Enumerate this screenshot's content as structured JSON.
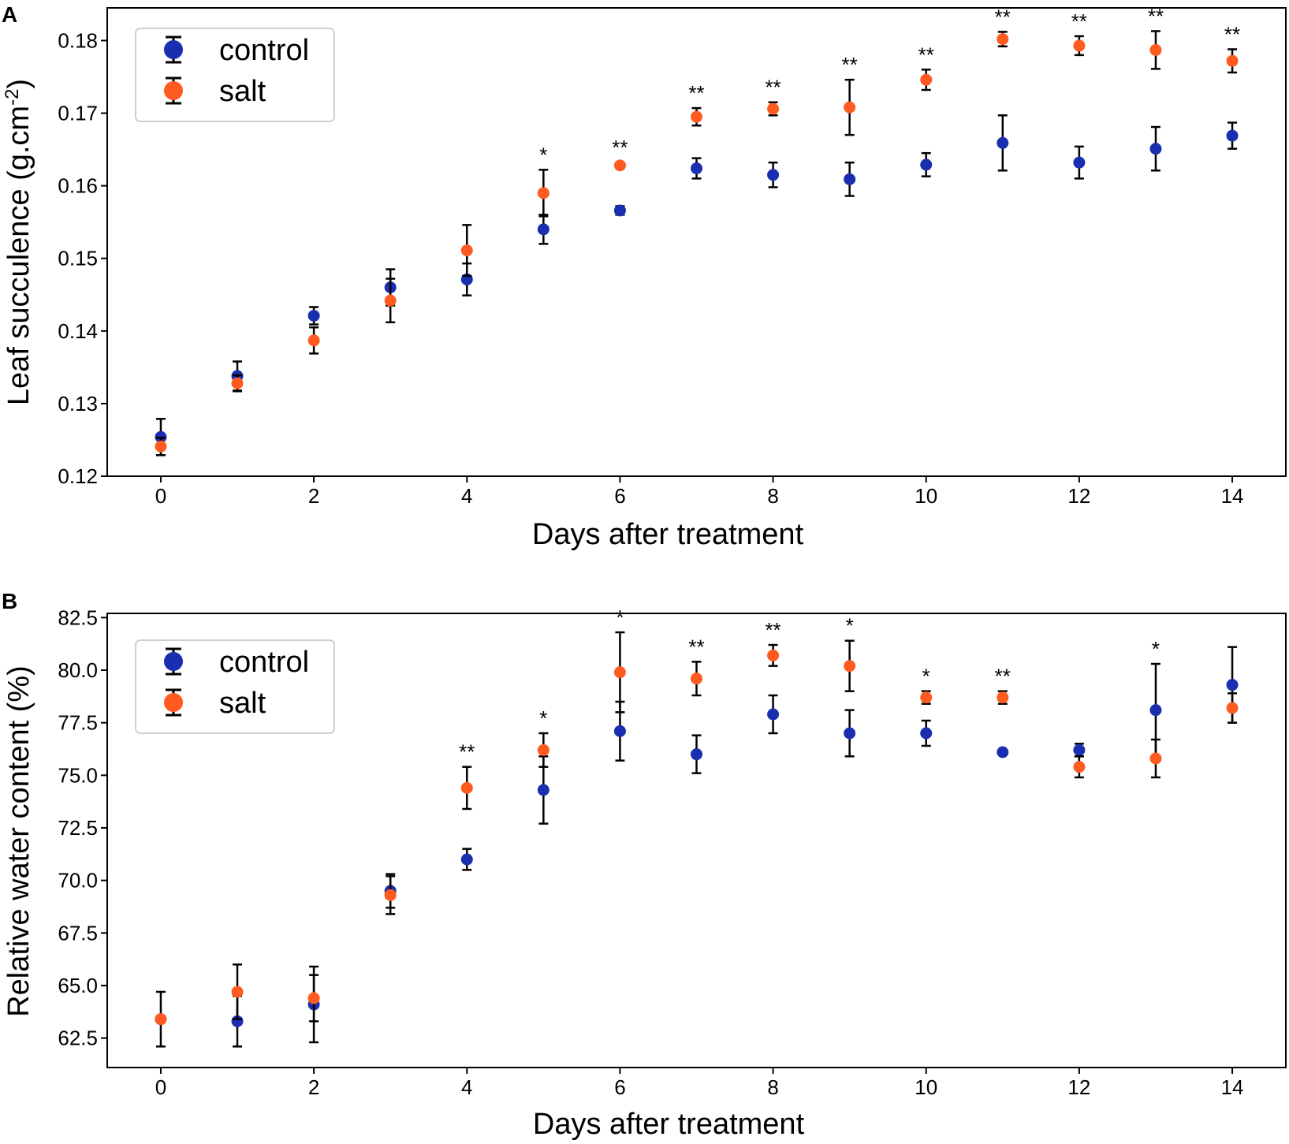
{
  "colors": {
    "control": "#1a2fb0",
    "salt": "#ff5a1f",
    "errorbar": "#000000"
  },
  "chart_data": [
    {
      "panel": "A",
      "type": "scatter",
      "title": "",
      "xlabel": "Days after treatment",
      "ylabel": "Leaf succulence (g.cm-2)",
      "ylabel_main": "Leaf succulence (g.cm",
      "ylabel_sup": "-2",
      "ylabel_tail": ")",
      "xlim": [
        -0.7,
        14.7
      ],
      "ylim": [
        0.12,
        0.1845
      ],
      "xticks": [
        0,
        2,
        4,
        6,
        8,
        10,
        12,
        14
      ],
      "xtick_labels": [
        "0",
        "2",
        "4",
        "6",
        "8",
        "10",
        "12",
        "14"
      ],
      "yticks": [
        0.12,
        0.13,
        0.14,
        0.15,
        0.16,
        0.17,
        0.18
      ],
      "ytick_labels": [
        "0.12",
        "0.13",
        "0.14",
        "0.15",
        "0.16",
        "0.17",
        "0.18"
      ],
      "legend": {
        "position": "top-left",
        "entries": [
          "control",
          "salt"
        ]
      },
      "x": [
        0,
        1,
        2,
        3,
        4,
        5,
        6,
        7,
        8,
        9,
        10,
        11,
        12,
        13,
        14
      ],
      "series": [
        {
          "name": "control",
          "values": [
            0.1254,
            0.1338,
            0.1421,
            0.146,
            0.1471,
            0.154,
            0.1566,
            0.1624,
            0.1615,
            0.1609,
            0.1629,
            0.1659,
            0.1632,
            0.1651,
            0.1669
          ],
          "errors": [
            0.0025,
            0.002,
            0.0012,
            0.0025,
            0.0022,
            0.002,
            0.0006,
            0.0014,
            0.0017,
            0.0023,
            0.0016,
            0.0038,
            0.0022,
            0.003,
            0.0018
          ]
        },
        {
          "name": "salt",
          "values": [
            0.1241,
            0.1328,
            0.1387,
            0.1442,
            0.1511,
            0.159,
            0.1628,
            0.1695,
            0.1706,
            0.1708,
            0.1746,
            0.1802,
            0.1793,
            0.1787,
            0.1772
          ],
          "errors": [
            0.0012,
            0.0011,
            0.0018,
            0.003,
            0.0035,
            0.0032,
            0.0004,
            0.0012,
            0.0009,
            0.0038,
            0.0014,
            0.001,
            0.0013,
            0.0026,
            0.0016
          ]
        }
      ],
      "significance": [
        "",
        "",
        "",
        "",
        "",
        "*",
        "**",
        "**",
        "**",
        "**",
        "**",
        "**",
        "**",
        "**",
        "**"
      ]
    },
    {
      "panel": "B",
      "type": "scatter",
      "title": "",
      "xlabel": "Days after treatment",
      "ylabel": "Relative water content (%)",
      "ylabel_main": "Relative water content (%)",
      "ylabel_sup": "",
      "ylabel_tail": "",
      "xlim": [
        -0.7,
        14.7
      ],
      "ylim": [
        61.1,
        82.7
      ],
      "xticks": [
        0,
        2,
        4,
        6,
        8,
        10,
        12,
        14
      ],
      "xtick_labels": [
        "0",
        "2",
        "4",
        "6",
        "8",
        "10",
        "12",
        "14"
      ],
      "yticks": [
        62.5,
        65.0,
        67.5,
        70.0,
        72.5,
        75.0,
        77.5,
        80.0,
        82.5
      ],
      "ytick_labels": [
        "62.5",
        "65.0",
        "67.5",
        "70.0",
        "72.5",
        "75.0",
        "77.5",
        "80.0",
        "82.5"
      ],
      "legend": {
        "position": "top-left",
        "entries": [
          "control",
          "salt"
        ]
      },
      "x": [
        0,
        1,
        2,
        3,
        4,
        5,
        6,
        7,
        8,
        9,
        10,
        11,
        12,
        13,
        14
      ],
      "series": [
        {
          "name": "control",
          "values": [
            63.4,
            63.3,
            64.1,
            69.5,
            71.0,
            74.3,
            77.1,
            76.0,
            77.9,
            77.0,
            77.0,
            76.1,
            76.2,
            78.1,
            79.3
          ],
          "errors": [
            0.0,
            1.2,
            1.8,
            0.8,
            0.5,
            1.6,
            1.4,
            0.9,
            0.9,
            1.1,
            0.6,
            0.0,
            0.3,
            2.2,
            1.8
          ]
        },
        {
          "name": "salt",
          "values": [
            63.4,
            64.7,
            64.4,
            69.3,
            74.4,
            76.2,
            79.9,
            79.6,
            80.7,
            80.2,
            78.7,
            78.7,
            75.4,
            75.8,
            78.2
          ],
          "errors": [
            1.3,
            1.3,
            1.1,
            0.9,
            1.0,
            0.8,
            1.9,
            0.8,
            0.5,
            1.2,
            0.3,
            0.3,
            0.5,
            0.9,
            0.7
          ]
        }
      ],
      "significance": [
        "",
        "",
        "",
        "",
        "**",
        "*",
        "*",
        "**",
        "**",
        "*",
        "*",
        "**",
        "",
        "*",
        ""
      ]
    }
  ]
}
